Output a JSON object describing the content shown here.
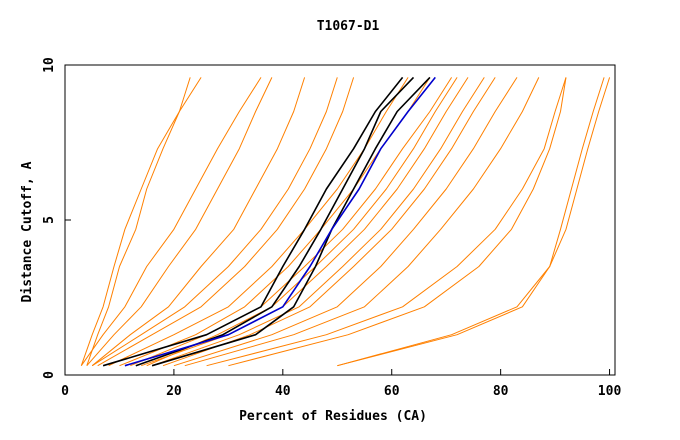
{
  "chart_data": {
    "type": "line",
    "title": "T1067-D1",
    "xlabel": "Percent of Residues (CA)",
    "ylabel": "Distance Cutoff, A",
    "xlim": [
      0,
      101
    ],
    "ylim": [
      0,
      10
    ],
    "x_ticks": [
      "0",
      "20",
      "40",
      "60",
      "80",
      "100"
    ],
    "x_tick_values": [
      0,
      20,
      40,
      60,
      80,
      100
    ],
    "y_ticks": [
      "0",
      "5",
      "10"
    ],
    "y_tick_values": [
      0,
      5,
      10
    ],
    "y_levels": [
      0.3,
      1.3,
      2.2,
      3.5,
      4.7,
      6.0,
      7.3,
      8.5,
      9.6
    ],
    "colors": {
      "bulk": "#ff8000",
      "highlight_black": "#000000",
      "highlight_blue": "#0000cc",
      "frame": "#000000"
    },
    "series": [
      {
        "color": "#ff8000",
        "x": [
          3,
          5,
          7,
          9,
          11,
          14,
          17,
          21,
          25
        ]
      },
      {
        "color": "#ff8000",
        "x": [
          4,
          6,
          8,
          10,
          13,
          15,
          18,
          21,
          23
        ]
      },
      {
        "color": "#ff8000",
        "x": [
          3,
          7,
          11,
          15,
          20,
          24,
          28,
          32,
          36
        ]
      },
      {
        "color": "#ff8000",
        "x": [
          4,
          9,
          14,
          19,
          24,
          28,
          32,
          35,
          38
        ]
      },
      {
        "color": "#ff8000",
        "x": [
          5,
          12,
          19,
          25,
          31,
          35,
          39,
          42,
          44
        ]
      },
      {
        "color": "#ff8000",
        "x": [
          5,
          14,
          22,
          30,
          36,
          41,
          45,
          48,
          50
        ]
      },
      {
        "color": "#ff8000",
        "x": [
          6,
          16,
          25,
          33,
          39,
          44,
          48,
          51,
          53
        ]
      },
      {
        "color": "#ff8000",
        "x": [
          8,
          20,
          30,
          38,
          44,
          50,
          55,
          59,
          63
        ]
      },
      {
        "color": "#ff8000",
        "x": [
          10,
          24,
          33,
          41,
          47,
          53,
          58,
          63,
          67
        ]
      },
      {
        "color": "#ff8000",
        "x": [
          12,
          26,
          36,
          44,
          51,
          57,
          62,
          67,
          71
        ]
      },
      {
        "color": "#ff8000",
        "x": [
          15,
          28,
          38,
          46,
          53,
          59,
          64,
          68,
          72
        ]
      },
      {
        "color": "#ff8000",
        "x": [
          14,
          30,
          40,
          48,
          55,
          61,
          66,
          70,
          74
        ]
      },
      {
        "color": "#ff8000",
        "x": [
          16,
          32,
          43,
          51,
          58,
          64,
          69,
          73,
          77
        ]
      },
      {
        "color": "#ff8000",
        "x": [
          18,
          34,
          45,
          53,
          60,
          66,
          71,
          75,
          79
        ]
      },
      {
        "color": "#ff8000",
        "x": [
          20,
          38,
          50,
          58,
          64,
          70,
          75,
          79,
          83
        ]
      },
      {
        "color": "#ff8000",
        "x": [
          22,
          42,
          55,
          63,
          69,
          75,
          80,
          84,
          87
        ]
      },
      {
        "color": "#ff8000",
        "x": [
          26,
          48,
          62,
          72,
          79,
          84,
          88,
          90,
          92
        ]
      },
      {
        "color": "#ff8000",
        "x": [
          30,
          52,
          66,
          76,
          82,
          86,
          89,
          91,
          92
        ]
      },
      {
        "color": "#ff8000",
        "x": [
          50,
          71,
          83,
          89,
          91,
          93,
          95,
          97,
          99
        ]
      },
      {
        "color": "#ff8000",
        "x": [
          50,
          72,
          84,
          89,
          92,
          94,
          96,
          98,
          100
        ]
      },
      {
        "color": "#000000",
        "x": [
          7,
          26,
          36,
          40,
          44,
          48,
          53,
          57,
          62
        ]
      },
      {
        "color": "#000000",
        "x": [
          13,
          29,
          38,
          43,
          47,
          51,
          55,
          58,
          64
        ]
      },
      {
        "color": "#000000",
        "x": [
          16,
          35,
          42,
          46,
          49,
          53,
          57,
          61,
          67
        ]
      },
      {
        "color": "#0000cc",
        "x": [
          11,
          30,
          40,
          45,
          49,
          54,
          58,
          63,
          68
        ]
      }
    ]
  }
}
